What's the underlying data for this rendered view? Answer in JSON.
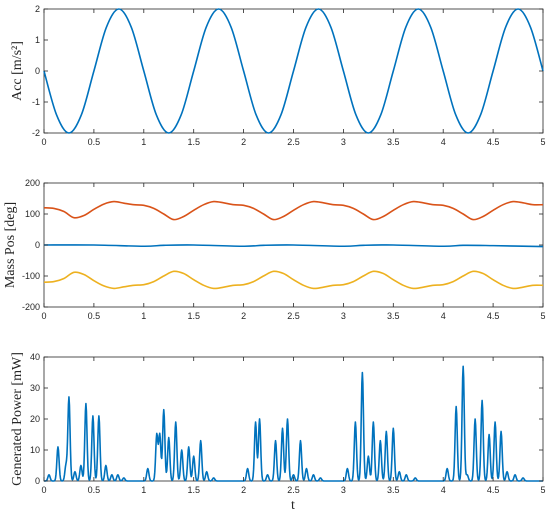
{
  "chart_data": [
    {
      "type": "line",
      "title": "",
      "xlabel": "",
      "ylabel": "Acc [m/s²]",
      "xlim": [
        0,
        5
      ],
      "ylim": [
        -2,
        2
      ],
      "xticks": [
        0,
        0.5,
        1,
        1.5,
        2,
        2.5,
        3,
        3.5,
        4,
        4.5,
        5
      ],
      "xtick_labels": [
        "0",
        "0.5",
        "1",
        "1.5",
        "2",
        "2.5",
        "3",
        "3.5",
        "4",
        "4.5",
        "5"
      ],
      "yticks": [
        -2,
        -1,
        0,
        1,
        2
      ],
      "ytick_labels": [
        "-2",
        "-1",
        "0",
        "1",
        "2"
      ],
      "grid": false,
      "series": [
        {
          "color": "#0072BD",
          "x": [
            0,
            0.125,
            0.25,
            0.375,
            0.5,
            0.625,
            0.75,
            0.875,
            1.0,
            1.125,
            1.25,
            1.375,
            1.5,
            1.625,
            1.75,
            1.875,
            2.0,
            2.125,
            2.25,
            2.375,
            2.5,
            2.625,
            2.75,
            2.875,
            3.0,
            3.125,
            3.25,
            3.375,
            3.5,
            3.625,
            3.75,
            3.875,
            4.0,
            4.125,
            4.25,
            4.375,
            4.5,
            4.625,
            4.75,
            4.875,
            5.0
          ],
          "y": [
            0,
            -1.41,
            -2,
            -1.41,
            0,
            1.41,
            2,
            1.41,
            0,
            -1.41,
            -2,
            -1.41,
            0,
            1.41,
            2,
            1.41,
            0,
            -1.41,
            -2,
            -1.41,
            0,
            1.41,
            2,
            1.41,
            0,
            -1.41,
            -2,
            -1.41,
            0,
            1.41,
            2,
            1.41,
            0,
            -1.41,
            -2,
            -1.41,
            0,
            1.41,
            2,
            1.41,
            0
          ]
        }
      ]
    },
    {
      "type": "line",
      "title": "",
      "xlabel": "",
      "ylabel": "Mass Pos [deg]",
      "xlim": [
        0,
        5
      ],
      "ylim": [
        -200,
        200
      ],
      "xticks": [
        0,
        0.5,
        1,
        1.5,
        2,
        2.5,
        3,
        3.5,
        4,
        4.5,
        5
      ],
      "xtick_labels": [
        "0",
        "0.5",
        "1",
        "1.5",
        "2",
        "2.5",
        "3",
        "3.5",
        "4",
        "4.5",
        "5"
      ],
      "yticks": [
        -200,
        -100,
        0,
        100,
        200
      ],
      "ytick_labels": [
        "-200",
        "-100",
        "0",
        "100",
        "200"
      ],
      "grid": false,
      "series": [
        {
          "color": "#D95319",
          "x": [
            0,
            0.1,
            0.2,
            0.3,
            0.4,
            0.5,
            0.6,
            0.7,
            0.8,
            0.9,
            1.0,
            1.1,
            1.2,
            1.3,
            1.4,
            1.5,
            1.6,
            1.7,
            1.8,
            1.9,
            2.0,
            2.1,
            2.2,
            2.3,
            2.4,
            2.5,
            2.6,
            2.7,
            2.8,
            2.9,
            3.0,
            3.1,
            3.2,
            3.3,
            3.4,
            3.5,
            3.6,
            3.7,
            3.8,
            3.9,
            4.0,
            4.1,
            4.2,
            4.3,
            4.4,
            4.5,
            4.6,
            4.7,
            4.8,
            4.9,
            5.0
          ],
          "y": [
            120,
            118,
            108,
            88,
            95,
            115,
            132,
            140,
            135,
            130,
            128,
            118,
            100,
            82,
            92,
            112,
            130,
            140,
            136,
            130,
            128,
            118,
            100,
            82,
            92,
            112,
            130,
            140,
            136,
            130,
            128,
            118,
            100,
            82,
            92,
            112,
            130,
            140,
            136,
            130,
            128,
            118,
            100,
            82,
            92,
            112,
            130,
            140,
            136,
            130,
            130
          ]
        },
        {
          "color": "#0072BD",
          "x": [
            0,
            0.5,
            1.0,
            1.2,
            1.5,
            2.0,
            2.2,
            2.5,
            3.0,
            3.2,
            3.5,
            4.0,
            4.2,
            4.5,
            5.0
          ],
          "y": [
            0,
            0,
            -4,
            -1,
            0,
            -4,
            -1,
            0,
            -4,
            -1,
            0,
            -4,
            -1,
            -2,
            -5
          ]
        },
        {
          "color": "#EDB120",
          "x": [
            0,
            0.1,
            0.2,
            0.3,
            0.4,
            0.5,
            0.6,
            0.7,
            0.8,
            0.9,
            1.0,
            1.1,
            1.2,
            1.3,
            1.4,
            1.5,
            1.6,
            1.7,
            1.8,
            1.9,
            2.0,
            2.1,
            2.2,
            2.3,
            2.4,
            2.5,
            2.6,
            2.7,
            2.8,
            2.9,
            3.0,
            3.1,
            3.2,
            3.3,
            3.4,
            3.5,
            3.6,
            3.7,
            3.8,
            3.9,
            4.0,
            4.1,
            4.2,
            4.3,
            4.4,
            4.5,
            4.6,
            4.7,
            4.8,
            4.9,
            5.0
          ],
          "y": [
            -120,
            -118,
            -108,
            -88,
            -95,
            -115,
            -132,
            -140,
            -135,
            -130,
            -128,
            -118,
            -100,
            -85,
            -92,
            -112,
            -130,
            -140,
            -136,
            -130,
            -128,
            -118,
            -100,
            -85,
            -92,
            -112,
            -130,
            -140,
            -136,
            -130,
            -128,
            -118,
            -100,
            -85,
            -92,
            -112,
            -130,
            -140,
            -136,
            -130,
            -128,
            -118,
            -100,
            -85,
            -92,
            -112,
            -130,
            -140,
            -136,
            -130,
            -130
          ]
        }
      ]
    },
    {
      "type": "line",
      "title": "",
      "xlabel": "t",
      "ylabel": "Generated Power [mW]",
      "xlim": [
        0,
        5
      ],
      "ylim": [
        0,
        40
      ],
      "xticks": [
        0,
        0.5,
        1,
        1.5,
        2,
        2.5,
        3,
        3.5,
        4,
        4.5,
        5
      ],
      "xtick_labels": [
        "0",
        "0.5",
        "1",
        "1.5",
        "2",
        "2.5",
        "3",
        "3.5",
        "4",
        "4.5",
        "5"
      ],
      "yticks": [
        0,
        10,
        20,
        30,
        40
      ],
      "ytick_labels": [
        "0",
        "10",
        "20",
        "30",
        "40"
      ],
      "grid": false,
      "series": [
        {
          "color": "#0072BD",
          "peaks": [
            [
              0.05,
              2
            ],
            [
              0.14,
              11
            ],
            [
              0.22,
              5
            ],
            [
              0.25,
              27
            ],
            [
              0.31,
              3
            ],
            [
              0.37,
              5
            ],
            [
              0.42,
              25
            ],
            [
              0.49,
              21
            ],
            [
              0.55,
              21
            ],
            [
              0.62,
              5
            ],
            [
              0.68,
              2
            ],
            [
              0.74,
              2
            ],
            [
              0.8,
              1
            ],
            [
              1.04,
              4
            ],
            [
              1.13,
              15
            ],
            [
              1.16,
              15
            ],
            [
              1.2,
              23
            ],
            [
              1.25,
              14
            ],
            [
              1.32,
              19
            ],
            [
              1.38,
              10
            ],
            [
              1.45,
              11
            ],
            [
              1.5,
              8
            ],
            [
              1.57,
              13
            ],
            [
              1.63,
              3
            ],
            [
              1.7,
              1
            ],
            [
              2.04,
              4
            ],
            [
              2.12,
              19
            ],
            [
              2.16,
              20
            ],
            [
              2.24,
              2
            ],
            [
              2.32,
              13
            ],
            [
              2.39,
              17
            ],
            [
              2.44,
              20
            ],
            [
              2.5,
              2
            ],
            [
              2.57,
              13
            ],
            [
              2.63,
              4
            ],
            [
              2.7,
              2
            ],
            [
              2.77,
              1
            ],
            [
              3.04,
              4
            ],
            [
              3.12,
              19
            ],
            [
              3.19,
              35
            ],
            [
              3.25,
              8
            ],
            [
              3.3,
              19
            ],
            [
              3.37,
              13
            ],
            [
              3.43,
              16
            ],
            [
              3.5,
              17
            ],
            [
              3.56,
              3
            ],
            [
              3.63,
              2
            ],
            [
              3.72,
              1
            ],
            [
              4.04,
              4
            ],
            [
              4.13,
              24
            ],
            [
              4.2,
              37
            ],
            [
              4.24,
              2
            ],
            [
              4.32,
              20
            ],
            [
              4.39,
              26
            ],
            [
              4.46,
              15
            ],
            [
              4.52,
              19
            ],
            [
              4.58,
              16
            ],
            [
              4.64,
              3
            ],
            [
              4.72,
              2
            ],
            [
              4.8,
              1
            ]
          ]
        }
      ]
    }
  ]
}
